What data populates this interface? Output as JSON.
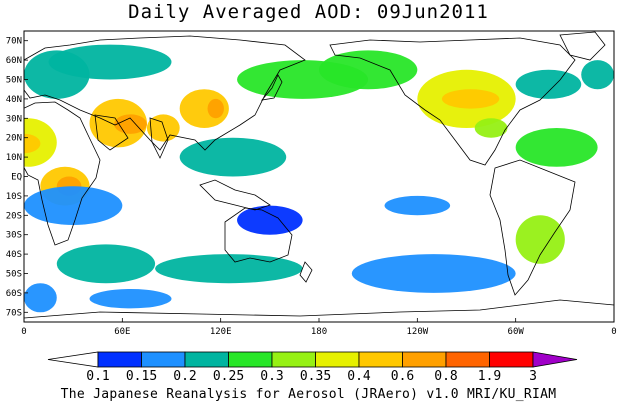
{
  "title": "Daily Averaged AOD: 09Jun2011",
  "credit": "The Japanese Reanalysis for Aerosol (JRAero) v1.0 MRI/KU_RIAM",
  "chart_data": {
    "type": "heatmap",
    "field": "AOD",
    "date": "09Jun2011",
    "projection": "equirectangular",
    "lon_range": [
      0,
      360
    ],
    "lat_range": [
      -75,
      75
    ],
    "lat_ticks": [
      "70N",
      "60N",
      "50N",
      "40N",
      "30N",
      "20N",
      "10N",
      "EQ",
      "10S",
      "20S",
      "30S",
      "40S",
      "50S",
      "60S",
      "70S"
    ],
    "lon_ticks": [
      "0",
      "60E",
      "120E",
      "180",
      "120W",
      "60W",
      "0"
    ],
    "colorbar": {
      "boundaries": [
        "0.1",
        "0.15",
        "0.2",
        "0.25",
        "0.3",
        "0.35",
        "0.4",
        "0.6",
        "0.8",
        "1.9",
        "3"
      ],
      "colors": [
        "#0030ff",
        "#1e90ff",
        "#00b4a0",
        "#28e628",
        "#96f014",
        "#e6f000",
        "#ffc800",
        "#ffa000",
        "#ff6400",
        "#ff0000",
        "#a000c8"
      ]
    },
    "regions": [
      {
        "lon": [
          0,
          40
        ],
        "lat": [
          40,
          65
        ],
        "level": 2
      },
      {
        "lon": [
          15,
          90
        ],
        "lat": [
          50,
          68
        ],
        "level": 2
      },
      {
        "lon": [
          -15,
          20
        ],
        "lat": [
          5,
          30
        ],
        "level": 5
      },
      {
        "lon": [
          -10,
          10
        ],
        "lat": [
          12,
          22
        ],
        "level": 6
      },
      {
        "lon": [
          40,
          75
        ],
        "lat": [
          15,
          40
        ],
        "level": 6
      },
      {
        "lon": [
          55,
          75
        ],
        "lat": [
          22,
          32
        ],
        "level": 7
      },
      {
        "lon": [
          75,
          95
        ],
        "lat": [
          18,
          32
        ],
        "level": 6
      },
      {
        "lon": [
          95,
          125
        ],
        "lat": [
          25,
          45
        ],
        "level": 6
      },
      {
        "lon": [
          112,
          122
        ],
        "lat": [
          30,
          40
        ],
        "level": 7
      },
      {
        "lon": [
          10,
          40
        ],
        "lat": [
          -15,
          5
        ],
        "level": 6
      },
      {
        "lon": [
          20,
          35
        ],
        "lat": [
          -10,
          0
        ],
        "level": 7
      },
      {
        "lon": [
          0,
          60
        ],
        "lat": [
          -25,
          -5
        ],
        "level": 1
      },
      {
        "lon": [
          95,
          160
        ],
        "lat": [
          0,
          20
        ],
        "level": 2
      },
      {
        "lon": [
          240,
          300
        ],
        "lat": [
          25,
          55
        ],
        "level": 5
      },
      {
        "lon": [
          255,
          290
        ],
        "lat": [
          35,
          45
        ],
        "level": 6
      },
      {
        "lon": [
          275,
          295
        ],
        "lat": [
          20,
          30
        ],
        "level": 4
      },
      {
        "lon": [
          130,
          210
        ],
        "lat": [
          40,
          60
        ],
        "level": 3
      },
      {
        "lon": [
          180,
          240
        ],
        "lat": [
          45,
          65
        ],
        "level": 3
      },
      {
        "lon": [
          300,
          350
        ],
        "lat": [
          5,
          25
        ],
        "level": 3
      },
      {
        "lon": [
          300,
          340
        ],
        "lat": [
          40,
          55
        ],
        "level": 2
      },
      {
        "lon": [
          300,
          330
        ],
        "lat": [
          -45,
          -20
        ],
        "level": 4
      },
      {
        "lon": [
          20,
          80
        ],
        "lat": [
          -55,
          -35
        ],
        "level": 2
      },
      {
        "lon": [
          80,
          170
        ],
        "lat": [
          -55,
          -40
        ],
        "level": 2
      },
      {
        "lon": [
          200,
          300
        ],
        "lat": [
          -60,
          -40
        ],
        "level": 1
      },
      {
        "lon": [
          220,
          260
        ],
        "lat": [
          -20,
          -10
        ],
        "level": 1
      },
      {
        "lon": [
          130,
          170
        ],
        "lat": [
          -30,
          -15
        ],
        "level": 0
      },
      {
        "lon": [
          340,
          360
        ],
        "lat": [
          45,
          60
        ],
        "level": 2
      },
      {
        "lon": [
          0,
          20
        ],
        "lat": [
          -70,
          -55
        ],
        "level": 1
      },
      {
        "lon": [
          40,
          90
        ],
        "lat": [
          -68,
          -58
        ],
        "level": 1
      }
    ]
  }
}
